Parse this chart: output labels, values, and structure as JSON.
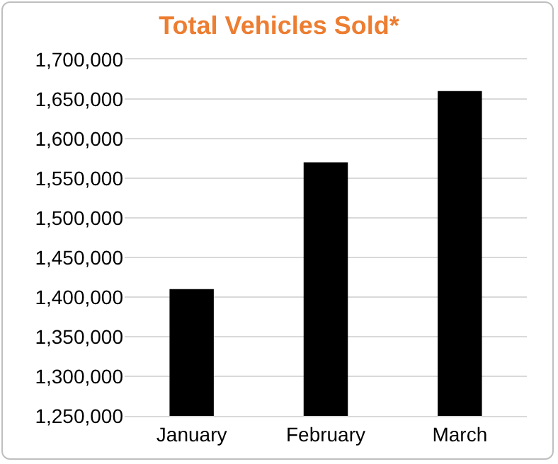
{
  "chart_data": {
    "type": "bar",
    "title": "Total Vehicles Sold*",
    "categories": [
      "January",
      "February",
      "March"
    ],
    "values": [
      1410000,
      1570000,
      1660000
    ],
    "color": "#000000",
    "ylim": [
      1250000,
      1700000
    ],
    "yticks": [
      {
        "value": 1250000,
        "label": "1,250,000"
      },
      {
        "value": 1300000,
        "label": "1,300,000"
      },
      {
        "value": 1350000,
        "label": "1,350,000"
      },
      {
        "value": 1400000,
        "label": "1,400,000"
      },
      {
        "value": 1450000,
        "label": "1,450,000"
      },
      {
        "value": 1500000,
        "label": "1,500,000"
      },
      {
        "value": 1550000,
        "label": "1,550,000"
      },
      {
        "value": 1600000,
        "label": "1,600,000"
      },
      {
        "value": 1650000,
        "label": "1,650,000"
      },
      {
        "value": 1700000,
        "label": "1,700,000"
      }
    ],
    "grid": "y"
  }
}
